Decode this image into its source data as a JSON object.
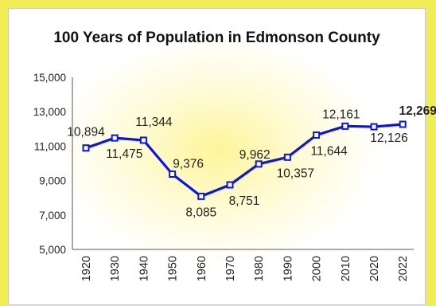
{
  "chart_data": {
    "type": "line",
    "title": "100 Years of Population in Edmonson County",
    "xlabel": "",
    "ylabel": "",
    "categories": [
      "1920",
      "1930",
      "1940",
      "1950",
      "1960",
      "1970",
      "1980",
      "1990",
      "2000",
      "2010",
      "2020",
      "2022"
    ],
    "series": [
      {
        "values": [
          10894,
          11475,
          11344,
          9376,
          8085,
          8751,
          9962,
          10357,
          11644,
          12161,
          12126,
          12269
        ],
        "color": "#0a14e8"
      }
    ],
    "data_labels": [
      "10,894",
      "11,475",
      "11,344",
      "9,376",
      "8,085",
      "8,751",
      "9,962",
      "10,357",
      "11,644",
      "12,161",
      "12,126",
      "12,269"
    ],
    "ylim": [
      5000,
      15000
    ],
    "yticks": [
      5000,
      7000,
      9000,
      11000,
      13000,
      15000
    ],
    "ytick_labels": [
      "5,000",
      "7,000",
      "9,000",
      "11,000",
      "13,000",
      "15,000"
    ],
    "grid": false,
    "legend": "none",
    "background_color": "#f3ed55"
  }
}
